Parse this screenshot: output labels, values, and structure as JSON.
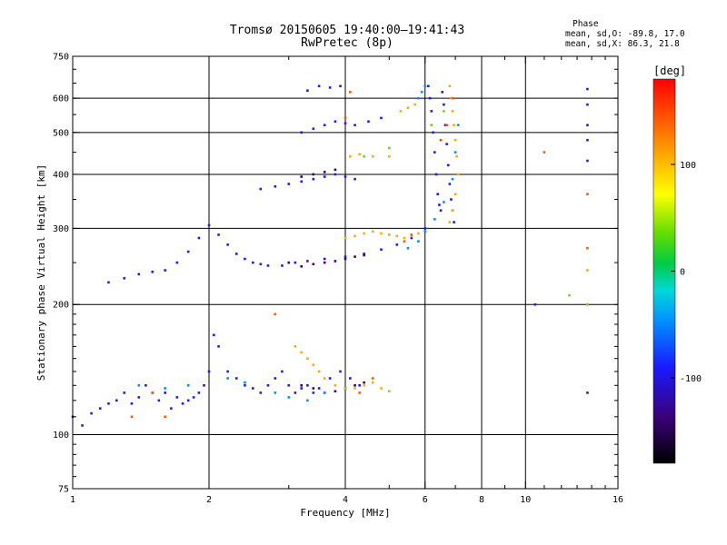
{
  "header": {
    "title": "Tromsø 20150605 19:40:00–19:41:43",
    "subtitle": "RwPretec (8p)"
  },
  "phase_info": {
    "heading": "Phase",
    "line_o": "mean, sd,O: -89.8, 17.0",
    "line_x": "mean, sd,X:  86.3, 21.8"
  },
  "colors": {
    "grid": "#000000",
    "colorbar": [
      "#000000",
      "#3a0077",
      "#1a1aff",
      "#0090ff",
      "#00d8d8",
      "#00cc44",
      "#66dd00",
      "#ffff00",
      "#ffaa00",
      "#ff5500",
      "#ff0000"
    ]
  },
  "chart_data": {
    "type": "scatter",
    "title": "Tromsø 20150605 19:40:00–19:41:43",
    "subtitle": "RwPretec (8p)",
    "xlabel": "Frequency [MHz]",
    "ylabel": "Stationary phase Virtual Height [km]",
    "x_scale": "log",
    "y_scale": "log",
    "xlim": [
      1,
      16
    ],
    "ylim": [
      75,
      750
    ],
    "x_ticks": [
      "1",
      "2",
      "4",
      "6",
      "8",
      "10",
      "16"
    ],
    "y_ticks": [
      "75",
      "100",
      "200",
      "300",
      "400",
      "500",
      "600",
      "750"
    ],
    "x_gridlines": [
      2,
      4,
      6,
      8,
      10
    ],
    "y_gridlines": [
      100,
      200,
      300,
      400,
      500,
      600
    ],
    "grid": true,
    "colorbar": {
      "label": "[deg]",
      "range": [
        -180,
        180
      ],
      "ticks": [
        "100",
        "0",
        "-100"
      ]
    },
    "series": [
      {
        "color_phase": -100,
        "points": [
          [
            1.0,
            110
          ],
          [
            1.05,
            105
          ],
          [
            1.1,
            112
          ],
          [
            1.15,
            115
          ],
          [
            1.2,
            118
          ],
          [
            1.25,
            120
          ],
          [
            1.3,
            125
          ],
          [
            1.35,
            118
          ],
          [
            1.4,
            122
          ],
          [
            1.45,
            130
          ],
          [
            1.5,
            125
          ],
          [
            1.55,
            120
          ],
          [
            1.6,
            125
          ],
          [
            1.65,
            115
          ],
          [
            1.7,
            122
          ],
          [
            1.75,
            118
          ],
          [
            1.8,
            120
          ],
          [
            1.85,
            122
          ],
          [
            1.9,
            125
          ],
          [
            1.95,
            130
          ],
          [
            2.0,
            140
          ],
          [
            2.05,
            170
          ],
          [
            2.1,
            160
          ],
          [
            2.2,
            140
          ],
          [
            2.3,
            135
          ],
          [
            2.4,
            130
          ],
          [
            2.5,
            128
          ],
          [
            2.6,
            125
          ],
          [
            2.7,
            130
          ],
          [
            2.8,
            135
          ],
          [
            2.9,
            140
          ],
          [
            3.0,
            130
          ],
          [
            3.1,
            125
          ],
          [
            3.2,
            128
          ],
          [
            3.3,
            130
          ],
          [
            3.4,
            125
          ],
          [
            3.5,
            128
          ],
          [
            3.7,
            135
          ],
          [
            3.9,
            140
          ],
          [
            4.1,
            135
          ],
          [
            4.3,
            130
          ],
          [
            1.2,
            225
          ],
          [
            1.3,
            230
          ],
          [
            1.4,
            235
          ],
          [
            1.5,
            238
          ],
          [
            1.6,
            240
          ],
          [
            1.7,
            250
          ],
          [
            1.8,
            265
          ],
          [
            1.9,
            285
          ],
          [
            2.0,
            305
          ],
          [
            2.1,
            290
          ],
          [
            2.2,
            275
          ],
          [
            2.3,
            262
          ],
          [
            2.4,
            255
          ],
          [
            2.5,
            250
          ],
          [
            2.6,
            248
          ],
          [
            2.7,
            246
          ],
          [
            2.9,
            246
          ],
          [
            3.1,
            250
          ],
          [
            3.3,
            252
          ],
          [
            3.6,
            255
          ],
          [
            4.0,
            258
          ],
          [
            4.4,
            262
          ],
          [
            4.8,
            268
          ],
          [
            5.2,
            275
          ],
          [
            5.6,
            285
          ],
          [
            6.0,
            300
          ],
          [
            2.6,
            370
          ],
          [
            2.8,
            375
          ],
          [
            3.0,
            380
          ],
          [
            3.2,
            385
          ],
          [
            3.4,
            390
          ],
          [
            3.6,
            395
          ],
          [
            3.8,
            400
          ],
          [
            4.0,
            395
          ],
          [
            4.2,
            390
          ],
          [
            3.2,
            500
          ],
          [
            3.4,
            510
          ],
          [
            3.6,
            520
          ],
          [
            3.8,
            530
          ],
          [
            4.0,
            525
          ],
          [
            4.2,
            520
          ],
          [
            4.5,
            530
          ],
          [
            4.8,
            540
          ],
          [
            3.3,
            625
          ],
          [
            3.5,
            640
          ],
          [
            3.7,
            635
          ],
          [
            3.9,
            640
          ],
          [
            6.1,
            640
          ],
          [
            6.15,
            600
          ],
          [
            6.2,
            560
          ],
          [
            6.25,
            500
          ],
          [
            6.3,
            450
          ],
          [
            6.35,
            400
          ],
          [
            6.4,
            360
          ],
          [
            6.45,
            340
          ],
          [
            6.5,
            330
          ],
          [
            6.55,
            620
          ],
          [
            6.6,
            580
          ],
          [
            6.65,
            520
          ],
          [
            6.7,
            470
          ],
          [
            6.75,
            420
          ],
          [
            6.8,
            380
          ],
          [
            6.85,
            350
          ],
          [
            6.9,
            330
          ],
          [
            6.95,
            310
          ],
          [
            13.7,
            630
          ],
          [
            13.7,
            580
          ],
          [
            13.7,
            520
          ],
          [
            13.7,
            480
          ],
          [
            13.7,
            430
          ],
          [
            13.7,
            125
          ],
          [
            10.5,
            200
          ]
        ]
      },
      {
        "color_phase": -150,
        "points": [
          [
            3.0,
            250
          ],
          [
            3.2,
            245
          ],
          [
            3.4,
            248
          ],
          [
            3.6,
            250
          ],
          [
            3.8,
            252
          ],
          [
            4.0,
            255
          ],
          [
            4.2,
            258
          ],
          [
            4.4,
            260
          ],
          [
            3.2,
            130
          ],
          [
            3.4,
            128
          ],
          [
            3.6,
            125
          ],
          [
            3.8,
            126
          ],
          [
            4.0,
            128
          ],
          [
            4.2,
            130
          ],
          [
            4.4,
            132
          ],
          [
            3.2,
            395
          ],
          [
            3.4,
            400
          ],
          [
            3.6,
            405
          ],
          [
            3.8,
            410
          ]
        ]
      },
      {
        "color_phase": -60,
        "points": [
          [
            1.4,
            130
          ],
          [
            1.6,
            128
          ],
          [
            1.8,
            130
          ],
          [
            2.2,
            135
          ],
          [
            2.4,
            132
          ],
          [
            2.8,
            125
          ],
          [
            3.0,
            122
          ],
          [
            3.3,
            120
          ],
          [
            3.6,
            125
          ],
          [
            4.0,
            128
          ],
          [
            5.5,
            270
          ],
          [
            5.8,
            280
          ],
          [
            6.0,
            295
          ],
          [
            6.3,
            315
          ],
          [
            6.6,
            345
          ],
          [
            6.9,
            390
          ],
          [
            7.0,
            450
          ],
          [
            7.1,
            520
          ],
          [
            5.8,
            600
          ],
          [
            5.9,
            620
          ],
          [
            6.0,
            640
          ]
        ]
      },
      {
        "color_phase": 100,
        "points": [
          [
            3.1,
            160
          ],
          [
            3.2,
            155
          ],
          [
            3.3,
            150
          ],
          [
            3.4,
            145
          ],
          [
            3.5,
            140
          ],
          [
            3.6,
            135
          ],
          [
            3.8,
            130
          ],
          [
            4.0,
            128
          ],
          [
            4.2,
            128
          ],
          [
            4.4,
            130
          ],
          [
            4.6,
            132
          ],
          [
            4.8,
            128
          ],
          [
            5.0,
            126
          ],
          [
            4.0,
            285
          ],
          [
            4.2,
            288
          ],
          [
            4.4,
            292
          ],
          [
            4.6,
            295
          ],
          [
            4.8,
            292
          ],
          [
            5.0,
            290
          ],
          [
            5.2,
            288
          ],
          [
            5.4,
            285
          ],
          [
            5.6,
            288
          ],
          [
            5.8,
            292
          ],
          [
            6.8,
            640
          ],
          [
            6.85,
            600
          ],
          [
            6.9,
            560
          ],
          [
            6.95,
            520
          ],
          [
            7.0,
            480
          ],
          [
            7.05,
            440
          ],
          [
            7.1,
            400
          ],
          [
            7.0,
            360
          ],
          [
            6.9,
            330
          ],
          [
            6.8,
            310
          ],
          [
            4.1,
            440
          ],
          [
            4.3,
            445
          ],
          [
            4.6,
            440
          ],
          [
            5.0,
            440
          ],
          [
            5.3,
            560
          ],
          [
            5.5,
            570
          ],
          [
            5.7,
            580
          ],
          [
            13.7,
            240
          ],
          [
            13.7,
            200
          ]
        ]
      },
      {
        "color_phase": 160,
        "points": [
          [
            1.35,
            110
          ],
          [
            1.5,
            125
          ],
          [
            1.6,
            110
          ],
          [
            4.3,
            125
          ],
          [
            4.6,
            135
          ],
          [
            5.4,
            280
          ],
          [
            5.6,
            290
          ],
          [
            6.5,
            480
          ],
          [
            6.7,
            520
          ],
          [
            6.9,
            600
          ],
          [
            4.0,
            540
          ],
          [
            4.1,
            620
          ],
          [
            2.8,
            190
          ],
          [
            13.7,
            270
          ],
          [
            11.0,
            450
          ],
          [
            13.7,
            360
          ]
        ]
      },
      {
        "color_phase": 40,
        "points": [
          [
            4.4,
            440
          ],
          [
            5.0,
            460
          ],
          [
            6.2,
            520
          ],
          [
            6.6,
            560
          ],
          [
            13.7,
            200
          ],
          [
            12.5,
            210
          ]
        ]
      }
    ]
  }
}
